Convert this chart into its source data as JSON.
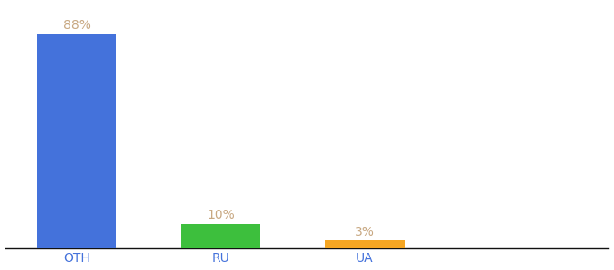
{
  "categories": [
    "OTH",
    "RU",
    "UA"
  ],
  "values": [
    88,
    10,
    3
  ],
  "bar_colors": [
    "#4472DB",
    "#3DBF3D",
    "#F5A623"
  ],
  "label_texts": [
    "88%",
    "10%",
    "3%"
  ],
  "label_color": "#C8A882",
  "label_fontsize": 10,
  "tick_fontsize": 10,
  "tick_color": "#4472DB",
  "background_color": "#ffffff",
  "ylim": [
    0,
    100
  ],
  "bar_width": 0.55,
  "x_positions": [
    0.5,
    1.5,
    2.5
  ],
  "xlim": [
    0,
    4.2
  ]
}
